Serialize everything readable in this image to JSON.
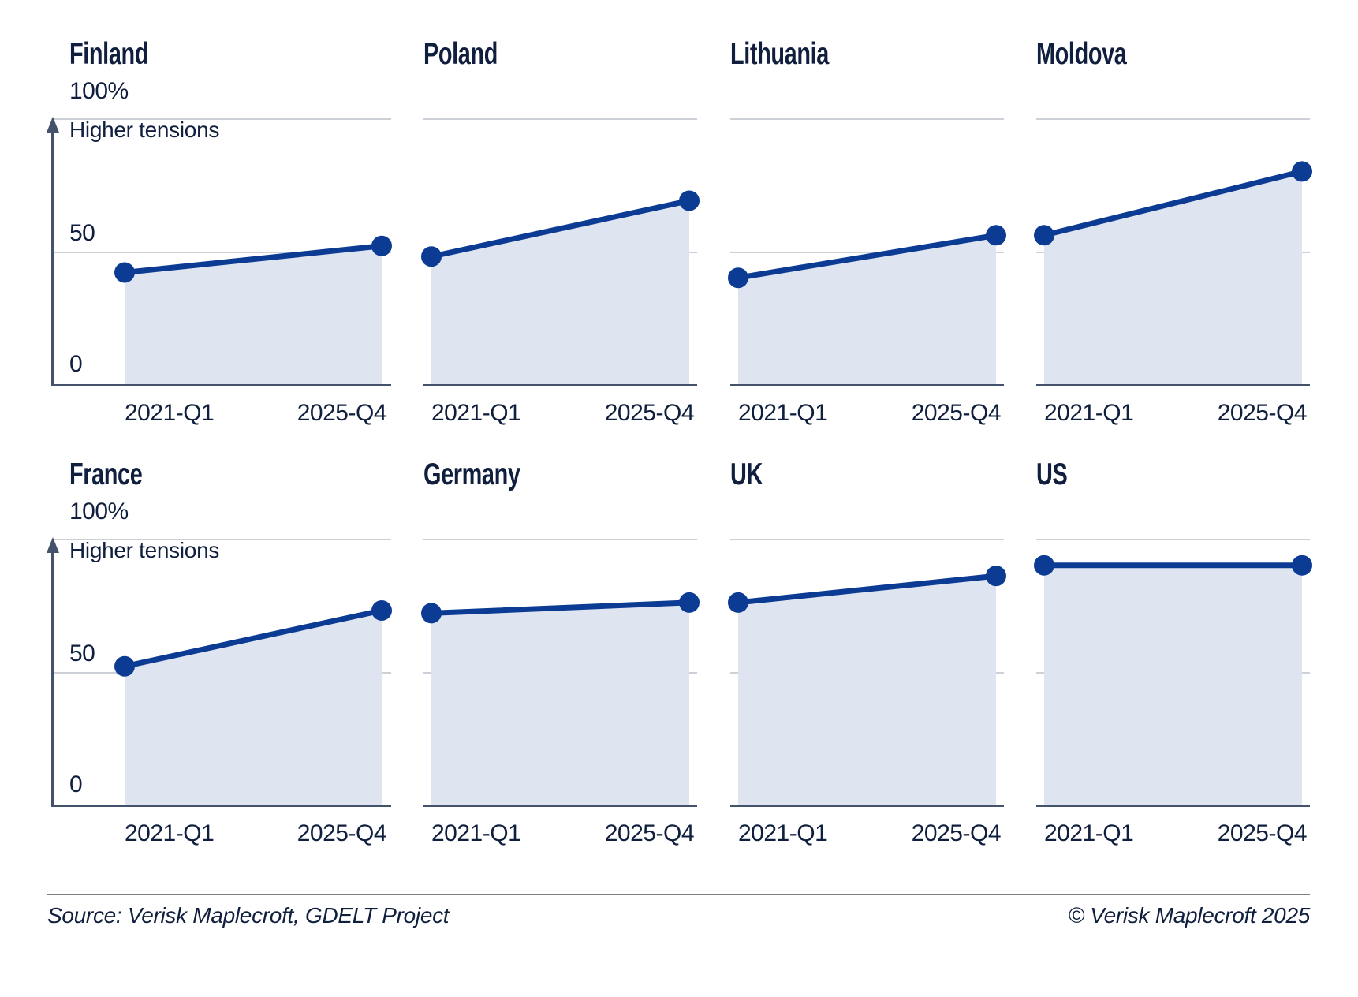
{
  "chart_data": [
    {
      "type": "area",
      "country": "Finland",
      "x": [
        "2021-Q1",
        "2025-Q4"
      ],
      "values": [
        42,
        52
      ],
      "ylim": [
        0,
        100
      ]
    },
    {
      "type": "area",
      "country": "Poland",
      "x": [
        "2021-Q1",
        "2025-Q4"
      ],
      "values": [
        48,
        69
      ],
      "ylim": [
        0,
        100
      ]
    },
    {
      "type": "area",
      "country": "Lithuania",
      "x": [
        "2021-Q1",
        "2025-Q4"
      ],
      "values": [
        40,
        56
      ],
      "ylim": [
        0,
        100
      ]
    },
    {
      "type": "area",
      "country": "Moldova",
      "x": [
        "2021-Q1",
        "2025-Q4"
      ],
      "values": [
        56,
        80
      ],
      "ylim": [
        0,
        100
      ]
    },
    {
      "type": "area",
      "country": "France",
      "x": [
        "2021-Q1",
        "2025-Q4"
      ],
      "values": [
        52,
        73
      ],
      "ylim": [
        0,
        100
      ]
    },
    {
      "type": "area",
      "country": "Germany",
      "x": [
        "2021-Q1",
        "2025-Q4"
      ],
      "values": [
        72,
        76
      ],
      "ylim": [
        0,
        100
      ]
    },
    {
      "type": "area",
      "country": "UK",
      "x": [
        "2021-Q1",
        "2025-Q4"
      ],
      "values": [
        76,
        86
      ],
      "ylim": [
        0,
        100
      ]
    },
    {
      "type": "area",
      "country": "US",
      "x": [
        "2021-Q1",
        "2025-Q4"
      ],
      "values": [
        90,
        90
      ],
      "ylim": [
        0,
        100
      ]
    }
  ],
  "axis": {
    "y_tick_top": "100%",
    "y_tick_mid": "50",
    "y_tick_bottom": "0",
    "annotation": "Higher tensions",
    "gridlines": [
      0,
      50,
      100
    ]
  },
  "footer": {
    "source": "Source: Verisk Maplecroft, GDELT Project",
    "copyright": "© Verisk Maplecroft 2025"
  },
  "colors": {
    "line_blue": "#0c3b94",
    "dot_blue": "#0c3b94",
    "area_fill": "#dfe4f1",
    "text_navy": "#101f3e",
    "gridline_gray": "#cdd1d7",
    "axis_dark": "#44526c",
    "divider_gray": "#7b8187",
    "background": "#ffffff"
  }
}
